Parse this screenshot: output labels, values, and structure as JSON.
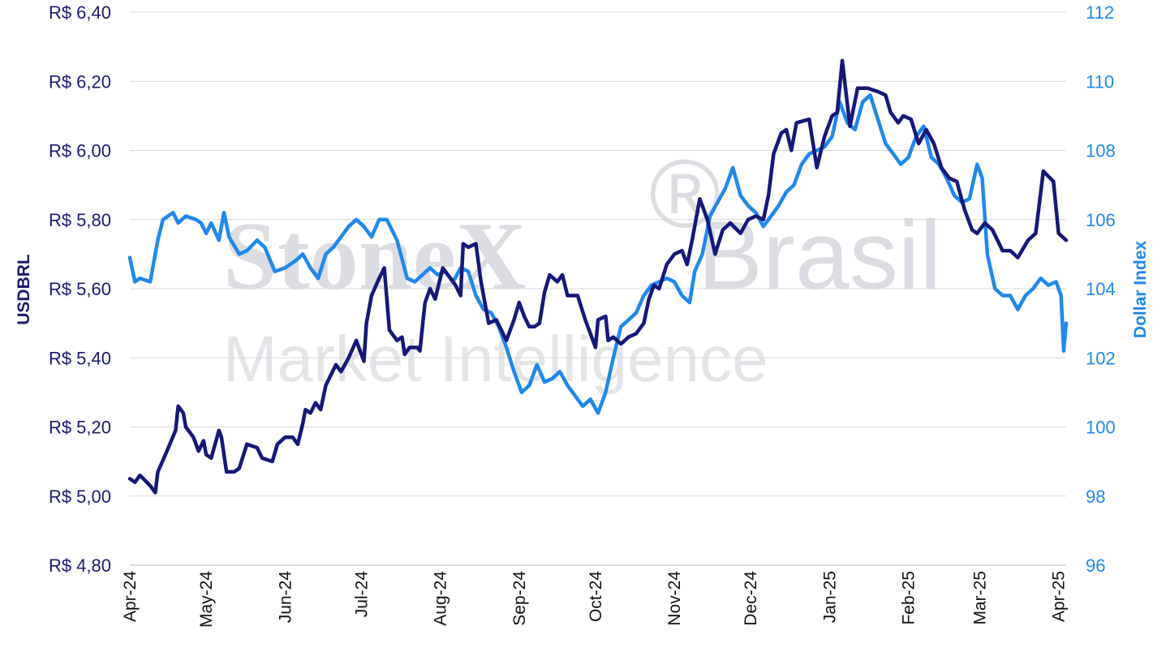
{
  "watermark": {
    "brand": "StoneX",
    "brand2": "Brasil",
    "registered": "®",
    "subtitle": "Market Intelligence"
  },
  "colors": {
    "usdbrl": "#15177a",
    "dxy": "#1e88f0",
    "grid": "#d9d9d9"
  },
  "chart_data": {
    "type": "line",
    "xlabel": "",
    "y_left_label": "USDBRL",
    "y_right_label": "Dollar Index",
    "y_left_lim": [
      4.8,
      6.4
    ],
    "y_right_lim": [
      96,
      112
    ],
    "y_left_ticks": [
      "R$ 4,80",
      "R$ 5,00",
      "R$ 5,20",
      "R$ 5,40",
      "R$ 5,60",
      "R$ 5,80",
      "R$ 6,00",
      "R$ 6,20",
      "R$ 6,40"
    ],
    "y_right_ticks": [
      "96",
      "98",
      "100",
      "102",
      "104",
      "106",
      "108",
      "110",
      "112"
    ],
    "x_ticks": [
      "Apr-24",
      "May-24",
      "Jun-24",
      "Jul-24",
      "Aug-24",
      "Sep-24",
      "Oct-24",
      "Nov-24",
      "Dec-24",
      "Jan-25",
      "Feb-25",
      "Mar-25",
      "Apr-25"
    ],
    "x_range": [
      "2024-04-01",
      "2025-04-04"
    ],
    "grid": "horizontal",
    "series": [
      {
        "name": "USDBRL",
        "axis": "left",
        "points": [
          [
            "2024-04-01",
            5.05
          ],
          [
            "2024-04-03",
            5.04
          ],
          [
            "2024-04-05",
            5.06
          ],
          [
            "2024-04-09",
            5.03
          ],
          [
            "2024-04-11",
            5.01
          ],
          [
            "2024-04-12",
            5.07
          ],
          [
            "2024-04-15",
            5.12
          ],
          [
            "2024-04-19",
            5.19
          ],
          [
            "2024-04-20",
            5.26
          ],
          [
            "2024-04-22",
            5.24
          ],
          [
            "2024-04-23",
            5.2
          ],
          [
            "2024-04-26",
            5.17
          ],
          [
            "2024-04-28",
            5.13
          ],
          [
            "2024-04-30",
            5.16
          ],
          [
            "2024-05-01",
            5.12
          ],
          [
            "2024-05-03",
            5.11
          ],
          [
            "2024-05-06",
            5.19
          ],
          [
            "2024-05-07",
            5.17
          ],
          [
            "2024-05-09",
            5.07
          ],
          [
            "2024-05-12",
            5.07
          ],
          [
            "2024-05-14",
            5.08
          ],
          [
            "2024-05-17",
            5.15
          ],
          [
            "2024-05-21",
            5.14
          ],
          [
            "2024-05-23",
            5.11
          ],
          [
            "2024-05-27",
            5.1
          ],
          [
            "2024-05-29",
            5.15
          ],
          [
            "2024-06-01",
            5.17
          ],
          [
            "2024-06-04",
            5.17
          ],
          [
            "2024-06-06",
            5.15
          ],
          [
            "2024-06-08",
            5.21
          ],
          [
            "2024-06-09",
            5.25
          ],
          [
            "2024-06-11",
            5.24
          ],
          [
            "2024-06-13",
            5.27
          ],
          [
            "2024-06-15",
            5.25
          ],
          [
            "2024-06-17",
            5.32
          ],
          [
            "2024-06-21",
            5.38
          ],
          [
            "2024-06-23",
            5.36
          ],
          [
            "2024-06-26",
            5.4
          ],
          [
            "2024-06-29",
            5.45
          ],
          [
            "2024-07-02",
            5.39
          ],
          [
            "2024-07-03",
            5.5
          ],
          [
            "2024-07-05",
            5.58
          ],
          [
            "2024-07-08",
            5.63
          ],
          [
            "2024-07-10",
            5.66
          ],
          [
            "2024-07-12",
            5.48
          ],
          [
            "2024-07-15",
            5.45
          ],
          [
            "2024-07-17",
            5.46
          ],
          [
            "2024-07-18",
            5.41
          ],
          [
            "2024-07-20",
            5.43
          ],
          [
            "2024-07-23",
            5.43
          ],
          [
            "2024-07-24",
            5.42
          ],
          [
            "2024-07-26",
            5.56
          ],
          [
            "2024-07-28",
            5.6
          ],
          [
            "2024-07-30",
            5.57
          ],
          [
            "2024-08-02",
            5.66
          ],
          [
            "2024-08-04",
            5.64
          ],
          [
            "2024-08-07",
            5.61
          ],
          [
            "2024-08-09",
            5.58
          ],
          [
            "2024-08-10",
            5.73
          ],
          [
            "2024-08-12",
            5.72
          ],
          [
            "2024-08-15",
            5.73
          ],
          [
            "2024-08-17",
            5.62
          ],
          [
            "2024-08-20",
            5.5
          ],
          [
            "2024-08-23",
            5.51
          ],
          [
            "2024-08-27",
            5.45
          ],
          [
            "2024-08-30",
            5.51
          ],
          [
            "2024-09-01",
            5.56
          ],
          [
            "2024-09-03",
            5.52
          ],
          [
            "2024-09-05",
            5.49
          ],
          [
            "2024-09-07",
            5.49
          ],
          [
            "2024-09-09",
            5.5
          ],
          [
            "2024-09-11",
            5.59
          ],
          [
            "2024-09-13",
            5.64
          ],
          [
            "2024-09-16",
            5.62
          ],
          [
            "2024-09-18",
            5.64
          ],
          [
            "2024-09-20",
            5.58
          ],
          [
            "2024-09-22",
            5.58
          ],
          [
            "2024-09-24",
            5.58
          ],
          [
            "2024-09-27",
            5.51
          ],
          [
            "2024-10-01",
            5.43
          ],
          [
            "2024-10-02",
            5.51
          ],
          [
            "2024-10-05",
            5.52
          ],
          [
            "2024-10-06",
            5.45
          ],
          [
            "2024-10-08",
            5.46
          ],
          [
            "2024-10-11",
            5.44
          ],
          [
            "2024-10-14",
            5.46
          ],
          [
            "2024-10-17",
            5.47
          ],
          [
            "2024-10-20",
            5.5
          ],
          [
            "2024-10-22",
            5.57
          ],
          [
            "2024-10-24",
            5.61
          ],
          [
            "2024-10-26",
            5.6
          ],
          [
            "2024-10-29",
            5.67
          ],
          [
            "2024-11-01",
            5.7
          ],
          [
            "2024-11-04",
            5.71
          ],
          [
            "2024-11-06",
            5.67
          ],
          [
            "2024-11-08",
            5.74
          ],
          [
            "2024-11-11",
            5.86
          ],
          [
            "2024-11-14",
            5.8
          ],
          [
            "2024-11-17",
            5.7
          ],
          [
            "2024-11-20",
            5.77
          ],
          [
            "2024-11-23",
            5.79
          ],
          [
            "2024-11-27",
            5.76
          ],
          [
            "2024-11-30",
            5.8
          ],
          [
            "2024-12-03",
            5.81
          ],
          [
            "2024-12-06",
            5.8
          ],
          [
            "2024-12-08",
            5.87
          ],
          [
            "2024-12-10",
            5.99
          ],
          [
            "2024-12-13",
            6.05
          ],
          [
            "2024-12-15",
            6.06
          ],
          [
            "2024-12-17",
            6.0
          ],
          [
            "2024-12-19",
            6.08
          ],
          [
            "2024-12-24",
            6.09
          ],
          [
            "2024-12-27",
            5.95
          ],
          [
            "2024-12-30",
            6.04
          ],
          [
            "2025-01-02",
            6.1
          ],
          [
            "2025-01-04",
            6.11
          ],
          [
            "2025-01-06",
            6.26
          ],
          [
            "2025-01-09",
            6.07
          ],
          [
            "2025-01-12",
            6.18
          ],
          [
            "2025-01-16",
            6.18
          ],
          [
            "2025-01-20",
            6.17
          ],
          [
            "2025-01-23",
            6.16
          ],
          [
            "2025-01-25",
            6.11
          ],
          [
            "2025-01-28",
            6.08
          ],
          [
            "2025-01-30",
            6.1
          ],
          [
            "2025-02-02",
            6.09
          ],
          [
            "2025-02-05",
            6.02
          ],
          [
            "2025-02-08",
            6.06
          ],
          [
            "2025-02-11",
            6.02
          ],
          [
            "2025-02-14",
            5.95
          ],
          [
            "2025-02-17",
            5.92
          ],
          [
            "2025-02-20",
            5.91
          ],
          [
            "2025-02-23",
            5.83
          ],
          [
            "2025-02-26",
            5.77
          ],
          [
            "2025-02-28",
            5.76
          ],
          [
            "2025-03-03",
            5.79
          ],
          [
            "2025-03-06",
            5.77
          ],
          [
            "2025-03-10",
            5.71
          ],
          [
            "2025-03-13",
            5.71
          ],
          [
            "2025-03-16",
            5.69
          ],
          [
            "2025-03-20",
            5.74
          ],
          [
            "2025-03-23",
            5.76
          ],
          [
            "2025-03-26",
            5.94
          ],
          [
            "2025-03-30",
            5.91
          ],
          [
            "2025-04-01",
            5.76
          ],
          [
            "2025-04-04",
            5.74
          ]
        ]
      },
      {
        "name": "Dollar Index",
        "axis": "right",
        "points": [
          [
            "2024-04-01",
            104.9
          ],
          [
            "2024-04-03",
            104.2
          ],
          [
            "2024-04-05",
            104.3
          ],
          [
            "2024-04-09",
            104.2
          ],
          [
            "2024-04-12",
            105.4
          ],
          [
            "2024-04-14",
            106.0
          ],
          [
            "2024-04-18",
            106.2
          ],
          [
            "2024-04-20",
            105.9
          ],
          [
            "2024-04-23",
            106.1
          ],
          [
            "2024-04-27",
            106.0
          ],
          [
            "2024-04-29",
            105.9
          ],
          [
            "2024-05-01",
            105.6
          ],
          [
            "2024-05-03",
            105.9
          ],
          [
            "2024-05-06",
            105.4
          ],
          [
            "2024-05-08",
            106.2
          ],
          [
            "2024-05-10",
            105.5
          ],
          [
            "2024-05-14",
            105.0
          ],
          [
            "2024-05-17",
            105.1
          ],
          [
            "2024-05-21",
            105.4
          ],
          [
            "2024-05-24",
            105.2
          ],
          [
            "2024-05-28",
            104.5
          ],
          [
            "2024-06-01",
            104.6
          ],
          [
            "2024-06-05",
            104.8
          ],
          [
            "2024-06-08",
            105.0
          ],
          [
            "2024-06-11",
            104.6
          ],
          [
            "2024-06-14",
            104.3
          ],
          [
            "2024-06-17",
            105.0
          ],
          [
            "2024-06-20",
            105.2
          ],
          [
            "2024-06-23",
            105.5
          ],
          [
            "2024-06-26",
            105.8
          ],
          [
            "2024-06-29",
            106.0
          ],
          [
            "2024-07-02",
            105.8
          ],
          [
            "2024-07-05",
            105.5
          ],
          [
            "2024-07-08",
            106.0
          ],
          [
            "2024-07-11",
            106.0
          ],
          [
            "2024-07-15",
            105.4
          ],
          [
            "2024-07-19",
            104.3
          ],
          [
            "2024-07-22",
            104.2
          ],
          [
            "2024-07-25",
            104.4
          ],
          [
            "2024-07-28",
            104.6
          ],
          [
            "2024-07-31",
            104.4
          ],
          [
            "2024-08-03",
            104.5
          ],
          [
            "2024-08-06",
            104.2
          ],
          [
            "2024-08-09",
            104.6
          ],
          [
            "2024-08-12",
            104.5
          ],
          [
            "2024-08-15",
            103.8
          ],
          [
            "2024-08-18",
            103.4
          ],
          [
            "2024-08-21",
            103.3
          ],
          [
            "2024-08-24",
            102.9
          ],
          [
            "2024-08-27",
            102.3
          ],
          [
            "2024-08-30",
            101.6
          ],
          [
            "2024-09-02",
            101.0
          ],
          [
            "2024-09-05",
            101.2
          ],
          [
            "2024-09-08",
            101.8
          ],
          [
            "2024-09-11",
            101.3
          ],
          [
            "2024-09-14",
            101.4
          ],
          [
            "2024-09-17",
            101.6
          ],
          [
            "2024-09-20",
            101.2
          ],
          [
            "2024-09-23",
            100.9
          ],
          [
            "2024-09-26",
            100.6
          ],
          [
            "2024-09-29",
            100.8
          ],
          [
            "2024-10-02",
            100.4
          ],
          [
            "2024-10-05",
            101.0
          ],
          [
            "2024-10-08",
            102.0
          ],
          [
            "2024-10-11",
            102.9
          ],
          [
            "2024-10-14",
            103.1
          ],
          [
            "2024-10-17",
            103.3
          ],
          [
            "2024-10-20",
            103.8
          ],
          [
            "2024-10-23",
            104.1
          ],
          [
            "2024-10-26",
            104.2
          ],
          [
            "2024-10-29",
            104.3
          ],
          [
            "2024-11-01",
            104.2
          ],
          [
            "2024-11-04",
            103.8
          ],
          [
            "2024-11-07",
            103.6
          ],
          [
            "2024-11-09",
            104.5
          ],
          [
            "2024-11-12",
            105.0
          ],
          [
            "2024-11-15",
            106.1
          ],
          [
            "2024-11-18",
            106.5
          ],
          [
            "2024-11-21",
            106.9
          ],
          [
            "2024-11-24",
            107.5
          ],
          [
            "2024-11-27",
            106.7
          ],
          [
            "2024-11-30",
            106.4
          ],
          [
            "2024-12-03",
            106.2
          ],
          [
            "2024-12-06",
            105.8
          ],
          [
            "2024-12-09",
            106.1
          ],
          [
            "2024-12-12",
            106.4
          ],
          [
            "2024-12-15",
            106.8
          ],
          [
            "2024-12-18",
            107.0
          ],
          [
            "2024-12-21",
            107.6
          ],
          [
            "2024-12-24",
            107.9
          ],
          [
            "2024-12-27",
            108.0
          ],
          [
            "2024-12-30",
            108.1
          ],
          [
            "2025-01-02",
            108.4
          ],
          [
            "2025-01-05",
            109.4
          ],
          [
            "2025-01-08",
            108.8
          ],
          [
            "2025-01-11",
            108.6
          ],
          [
            "2025-01-14",
            109.4
          ],
          [
            "2025-01-17",
            109.6
          ],
          [
            "2025-01-20",
            108.9
          ],
          [
            "2025-01-23",
            108.2
          ],
          [
            "2025-01-26",
            107.9
          ],
          [
            "2025-01-29",
            107.6
          ],
          [
            "2025-02-01",
            107.8
          ],
          [
            "2025-02-04",
            108.4
          ],
          [
            "2025-02-07",
            108.7
          ],
          [
            "2025-02-10",
            107.8
          ],
          [
            "2025-02-13",
            107.6
          ],
          [
            "2025-02-16",
            107.2
          ],
          [
            "2025-02-19",
            106.7
          ],
          [
            "2025-02-22",
            106.5
          ],
          [
            "2025-02-25",
            106.6
          ],
          [
            "2025-02-28",
            107.6
          ],
          [
            "2025-03-02",
            107.2
          ],
          [
            "2025-03-04",
            105.0
          ],
          [
            "2025-03-07",
            104.0
          ],
          [
            "2025-03-10",
            103.8
          ],
          [
            "2025-03-13",
            103.8
          ],
          [
            "2025-03-16",
            103.4
          ],
          [
            "2025-03-19",
            103.8
          ],
          [
            "2025-03-22",
            104.0
          ],
          [
            "2025-03-25",
            104.3
          ],
          [
            "2025-03-28",
            104.1
          ],
          [
            "2025-03-31",
            104.2
          ],
          [
            "2025-04-02",
            103.8
          ],
          [
            "2025-04-03",
            102.2
          ],
          [
            "2025-04-04",
            103.0
          ]
        ]
      }
    ]
  }
}
